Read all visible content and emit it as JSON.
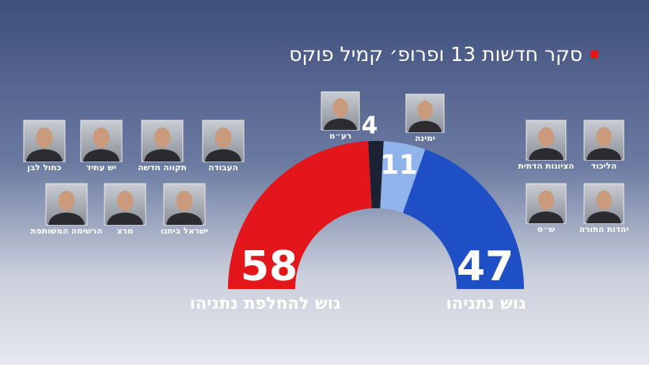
{
  "chart_data": {
    "type": "half-donut",
    "title": "סקר חדשות 13 ופרופ׳ קמיל פוקס",
    "categories": [
      "גוש להחלפת נתניהו",
      "רע״מ",
      "ימינה",
      "גוש נתניהו"
    ],
    "values": [
      58,
      4,
      11,
      47
    ],
    "colors": [
      "#e3161c",
      "#1a2233",
      "#8fb3ea",
      "#1f4fc4"
    ]
  },
  "parties": {
    "change_bloc": [
      "כחול לבן",
      "יש עתיד",
      "תקווה חדשה",
      "העבודה",
      "הרשימה המשותפת",
      "מרצ",
      "ישראל ביתנו"
    ],
    "netanyahu_bloc": [
      "הליכוד",
      "הציונות הדתית",
      "יהדות התורה",
      "ש״ס"
    ]
  }
}
